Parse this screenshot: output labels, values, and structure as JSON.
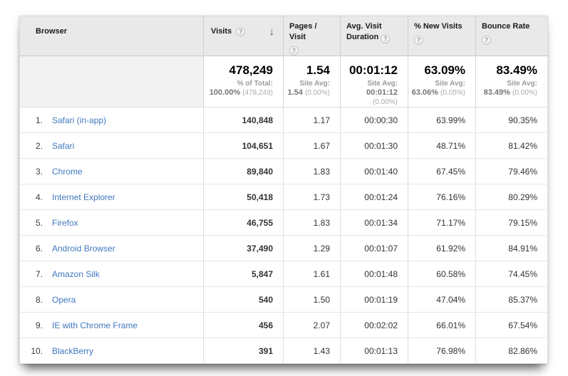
{
  "colors": {
    "link_blue": "#4078be",
    "header_bg": "#e9e9e9"
  },
  "icons": {
    "help": "?",
    "sort_desc": "↓"
  },
  "header": {
    "columns": [
      {
        "label": "Browser"
      },
      {
        "label": "Visits",
        "sorted": "desc"
      },
      {
        "label": "Pages / Visit"
      },
      {
        "label": "Avg. Visit Duration"
      },
      {
        "label": "% New Visits"
      },
      {
        "label": "Bounce Rate"
      }
    ]
  },
  "summary": {
    "visits": {
      "main": "478,249",
      "label": "% of Total:",
      "avg": "100.00%",
      "paren": "(478,249)"
    },
    "pages": {
      "main": "1.54",
      "label": "Site Avg:",
      "avg": "1.54",
      "paren": "(0.00%)"
    },
    "duration": {
      "main": "00:01:12",
      "label": "Site Avg:",
      "avg": "00:01:12",
      "paren": "(0.00%)"
    },
    "new_visits": {
      "main": "63.09%",
      "label": "Site Avg:",
      "avg": "63.06%",
      "paren": "(0.05%)"
    },
    "bounce": {
      "main": "83.49%",
      "label": "Site Avg:",
      "avg": "83.49%",
      "paren": "(0.00%)"
    }
  },
  "rows": [
    {
      "idx": "1.",
      "name": "Safari (in-app)",
      "visits": "140,848",
      "pages": "1.17",
      "duration": "00:00:30",
      "new_visits": "63.99%",
      "bounce": "90.35%"
    },
    {
      "idx": "2.",
      "name": "Safari",
      "visits": "104,651",
      "pages": "1.67",
      "duration": "00:01:30",
      "new_visits": "48.71%",
      "bounce": "81.42%"
    },
    {
      "idx": "3.",
      "name": "Chrome",
      "visits": "89,840",
      "pages": "1.83",
      "duration": "00:01:40",
      "new_visits": "67.45%",
      "bounce": "79.46%"
    },
    {
      "idx": "4.",
      "name": "Internet Explorer",
      "visits": "50,418",
      "pages": "1.73",
      "duration": "00:01:24",
      "new_visits": "76.16%",
      "bounce": "80.29%"
    },
    {
      "idx": "5.",
      "name": "Firefox",
      "visits": "46,755",
      "pages": "1.83",
      "duration": "00:01:34",
      "new_visits": "71.17%",
      "bounce": "79.15%"
    },
    {
      "idx": "6.",
      "name": "Android Browser",
      "visits": "37,490",
      "pages": "1.29",
      "duration": "00:01:07",
      "new_visits": "61.92%",
      "bounce": "84.91%"
    },
    {
      "idx": "7.",
      "name": "Amazon Silk",
      "visits": "5,847",
      "pages": "1.61",
      "duration": "00:01:48",
      "new_visits": "60.58%",
      "bounce": "74.45%"
    },
    {
      "idx": "8.",
      "name": "Opera",
      "visits": "540",
      "pages": "1.50",
      "duration": "00:01:19",
      "new_visits": "47.04%",
      "bounce": "85.37%"
    },
    {
      "idx": "9.",
      "name": "IE with Chrome Frame",
      "visits": "456",
      "pages": "2.07",
      "duration": "00:02:02",
      "new_visits": "66.01%",
      "bounce": "67.54%"
    },
    {
      "idx": "10.",
      "name": "BlackBerry",
      "visits": "391",
      "pages": "1.43",
      "duration": "00:01:13",
      "new_visits": "76.98%",
      "bounce": "82.86%"
    }
  ]
}
